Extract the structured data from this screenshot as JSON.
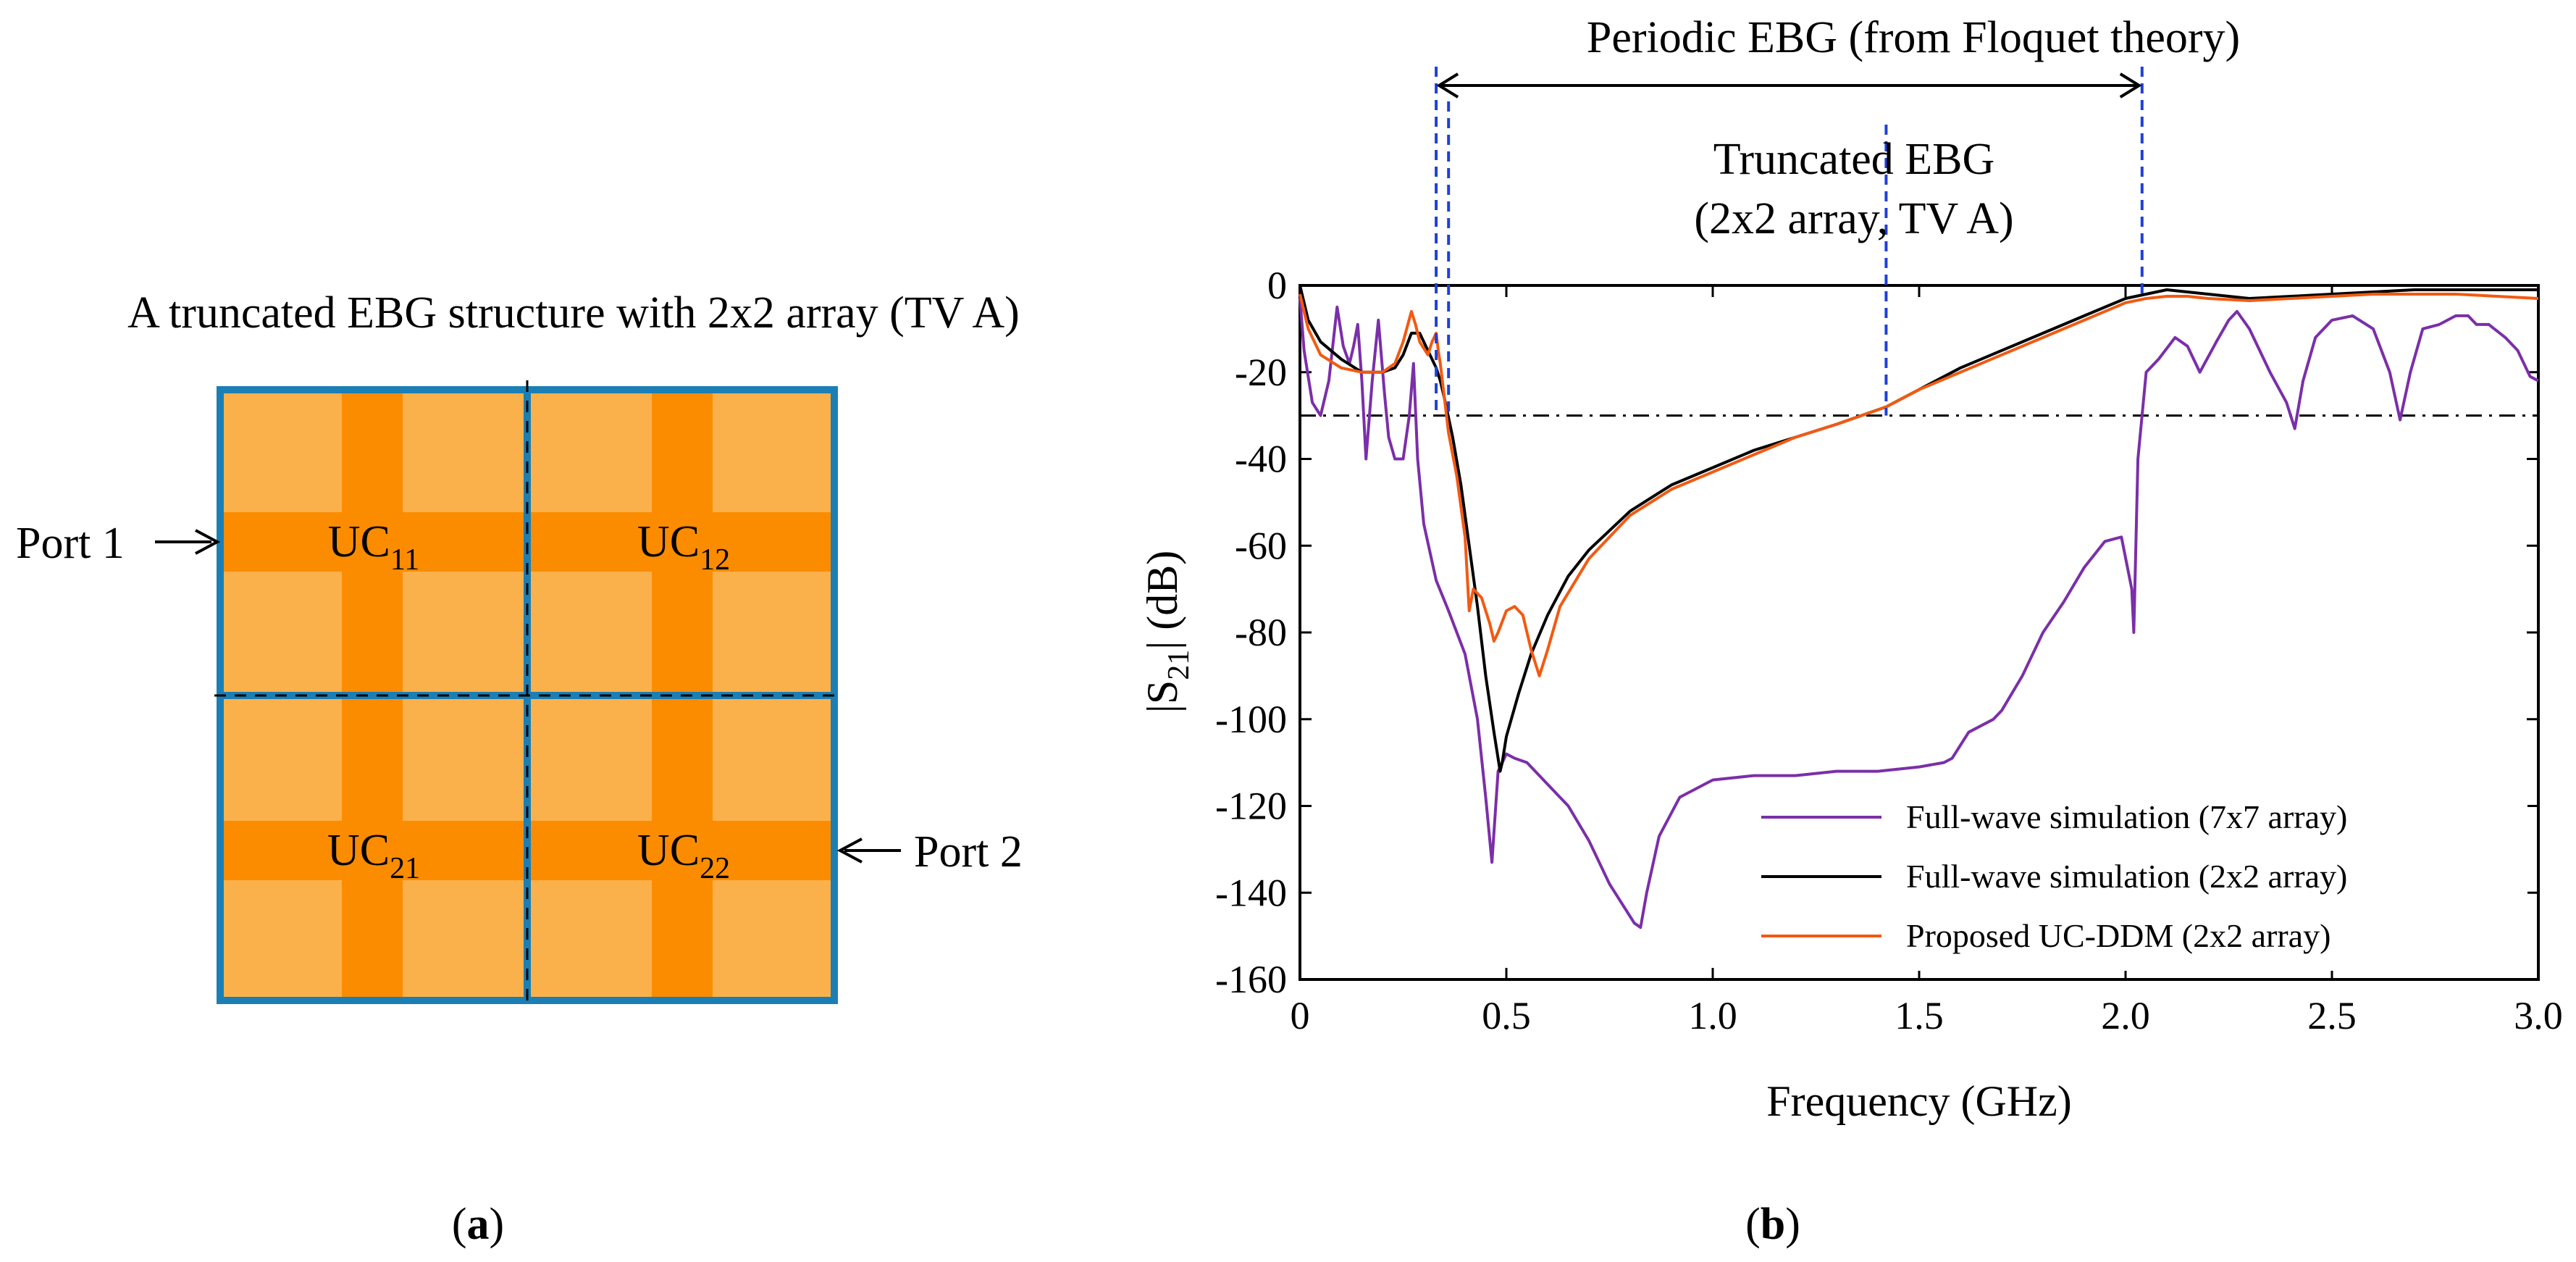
{
  "panel_a": {
    "title": "A truncated EBG structure with 2x2 array (TV A)",
    "cells": [
      {
        "label_base": "UC",
        "label_sub": "11"
      },
      {
        "label_base": "UC",
        "label_sub": "12"
      },
      {
        "label_base": "UC",
        "label_sub": "21"
      },
      {
        "label_base": "UC",
        "label_sub": "22"
      }
    ],
    "port1": "Port 1",
    "port2": "Port 2",
    "label_open": "(",
    "label_letter": "a",
    "label_close": ")",
    "colors": {
      "border": "#1b7fb5",
      "patch": "#fbb14b",
      "strip": "#fb8c00",
      "dash": "#000000"
    }
  },
  "panel_b": {
    "label_open": "(",
    "label_letter": "b",
    "label_close": ")"
  },
  "chart_data": {
    "type": "line",
    "xlabel": "Frequency (GHz)",
    "ylabel_prefix": "|S",
    "ylabel_sub": "21",
    "ylabel_suffix": "| (dB)",
    "xlim": [
      0,
      3.0
    ],
    "ylim": [
      -160,
      0
    ],
    "xticks": [
      0,
      0.5,
      1.0,
      1.5,
      2.0,
      2.5,
      3.0
    ],
    "xtick_labels": [
      "0",
      "0.5",
      "1.0",
      "1.5",
      "2.0",
      "2.5",
      "3.0"
    ],
    "yticks": [
      0,
      -20,
      -40,
      -60,
      -80,
      -100,
      -120,
      -140,
      -160
    ],
    "ytick_labels": [
      "0",
      "-20",
      "-40",
      "-60",
      "-80",
      "-100",
      "-120",
      "-140",
      "-160"
    ],
    "threshold_db": -30,
    "periodic_band": {
      "label": "Periodic EBG (from Floquet theory)",
      "start": 0.33,
      "end": 2.04,
      "color": "#1f3fd8"
    },
    "truncated_band": {
      "label_line1": "Truncated EBG",
      "label_line2": "(2x2 array, TV A)",
      "start": 0.36,
      "end": 1.42,
      "color": "#1f3fd8"
    },
    "legend_position": "bottom-right",
    "series": [
      {
        "name": "Full-wave simulation (7x7 array)",
        "color": "#7b2fa8",
        "x": [
          0,
          0.01,
          0.03,
          0.05,
          0.07,
          0.09,
          0.105,
          0.12,
          0.13,
          0.14,
          0.15,
          0.16,
          0.175,
          0.19,
          0.205,
          0.215,
          0.23,
          0.25,
          0.265,
          0.275,
          0.285,
          0.3,
          0.33,
          0.36,
          0.4,
          0.43,
          0.45,
          0.465,
          0.48,
          0.5,
          0.52,
          0.55,
          0.6,
          0.65,
          0.7,
          0.75,
          0.79,
          0.81,
          0.825,
          0.84,
          0.87,
          0.92,
          1.0,
          1.1,
          1.2,
          1.3,
          1.4,
          1.5,
          1.56,
          1.58,
          1.62,
          1.68,
          1.7,
          1.75,
          1.8,
          1.85,
          1.9,
          1.95,
          1.99,
          2.015,
          2.02,
          2.03,
          2.05,
          2.08,
          2.12,
          2.15,
          2.18,
          2.22,
          2.25,
          2.27,
          2.3,
          2.35,
          2.39,
          2.41,
          2.43,
          2.46,
          2.5,
          2.55,
          2.6,
          2.64,
          2.665,
          2.69,
          2.72,
          2.76,
          2.8,
          2.83,
          2.85,
          2.88,
          2.92,
          2.95,
          2.98,
          3.0
        ],
        "y": [
          -3,
          -15,
          -27,
          -30,
          -22,
          -5,
          -14,
          -18,
          -14,
          -9,
          -22,
          -40,
          -22,
          -8,
          -25,
          -35,
          -40,
          -40,
          -30,
          -18,
          -40,
          -55,
          -68,
          -75,
          -85,
          -100,
          -118,
          -133,
          -112,
          -108,
          -109,
          -110,
          -115,
          -120,
          -128,
          -138,
          -144,
          -147,
          -148,
          -140,
          -127,
          -118,
          -114,
          -113,
          -113,
          -112,
          -112,
          -111,
          -110,
          -109,
          -103,
          -100,
          -98,
          -90,
          -80,
          -73,
          -65,
          -59,
          -58,
          -70,
          -80,
          -40,
          -20,
          -17,
          -12,
          -14,
          -20,
          -13,
          -8,
          -6,
          -10,
          -20,
          -27,
          -33,
          -22,
          -12,
          -8,
          -7,
          -10,
          -20,
          -31,
          -20,
          -10,
          -9,
          -7,
          -7,
          -9,
          -9,
          -12,
          -15,
          -21,
          -22
        ]
      },
      {
        "name": "Full-wave simulation (2x2 array)",
        "color": "#000000",
        "x": [
          0,
          0.02,
          0.05,
          0.1,
          0.15,
          0.2,
          0.23,
          0.25,
          0.27,
          0.29,
          0.31,
          0.33,
          0.34,
          0.35,
          0.37,
          0.39,
          0.41,
          0.43,
          0.45,
          0.47,
          0.485,
          0.49,
          0.5,
          0.53,
          0.56,
          0.6,
          0.65,
          0.7,
          0.8,
          0.9,
          1.0,
          1.1,
          1.2,
          1.3,
          1.42,
          1.5,
          1.6,
          1.7,
          1.8,
          1.9,
          2.0,
          2.05,
          2.1,
          2.15,
          2.2,
          2.3,
          2.4,
          2.5,
          2.6,
          2.7,
          2.8,
          2.9,
          3.0
        ],
        "y": [
          0,
          -8,
          -13,
          -17,
          -20,
          -20,
          -19,
          -16,
          -11,
          -11,
          -15,
          -19,
          -22,
          -26,
          -35,
          -46,
          -60,
          -74,
          -90,
          -103,
          -112,
          -110,
          -104,
          -94,
          -85,
          -76,
          -67,
          -61,
          -52,
          -46,
          -42,
          -38,
          -35,
          -32,
          -28,
          -24,
          -19,
          -15,
          -11,
          -7,
          -3,
          -2,
          -1,
          -1.5,
          -2,
          -3,
          -2.5,
          -2,
          -1.5,
          -1,
          -1,
          -1,
          -1
        ]
      },
      {
        "name": "Proposed UC-DDM (2x2 array)",
        "color": "#f25a12",
        "x": [
          0,
          0.02,
          0.05,
          0.1,
          0.15,
          0.2,
          0.23,
          0.25,
          0.27,
          0.28,
          0.29,
          0.31,
          0.32,
          0.33,
          0.335,
          0.34,
          0.35,
          0.36,
          0.38,
          0.4,
          0.41,
          0.42,
          0.44,
          0.46,
          0.47,
          0.48,
          0.5,
          0.52,
          0.54,
          0.56,
          0.58,
          0.6,
          0.63,
          0.7,
          0.8,
          0.9,
          1.0,
          1.1,
          1.2,
          1.3,
          1.42,
          1.5,
          1.6,
          1.7,
          1.8,
          1.9,
          2.0,
          2.05,
          2.1,
          2.15,
          2.2,
          2.3,
          2.4,
          2.5,
          2.6,
          2.7,
          2.8,
          2.9,
          3.0
        ],
        "y": [
          -2,
          -10,
          -16,
          -19,
          -20,
          -20,
          -18,
          -13,
          -6,
          -9,
          -13,
          -16,
          -13,
          -11,
          -15,
          -18,
          -26,
          -34,
          -44,
          -58,
          -75,
          -70,
          -72,
          -78,
          -82,
          -80,
          -75,
          -74,
          -76,
          -84,
          -90,
          -84,
          -74,
          -63,
          -53,
          -47,
          -43,
          -39,
          -35,
          -32,
          -28,
          -24,
          -20,
          -16,
          -12,
          -8,
          -4,
          -3,
          -2.5,
          -2.5,
          -3,
          -3.5,
          -3,
          -2.5,
          -2,
          -2,
          -2,
          -2.5,
          -3
        ]
      }
    ]
  }
}
